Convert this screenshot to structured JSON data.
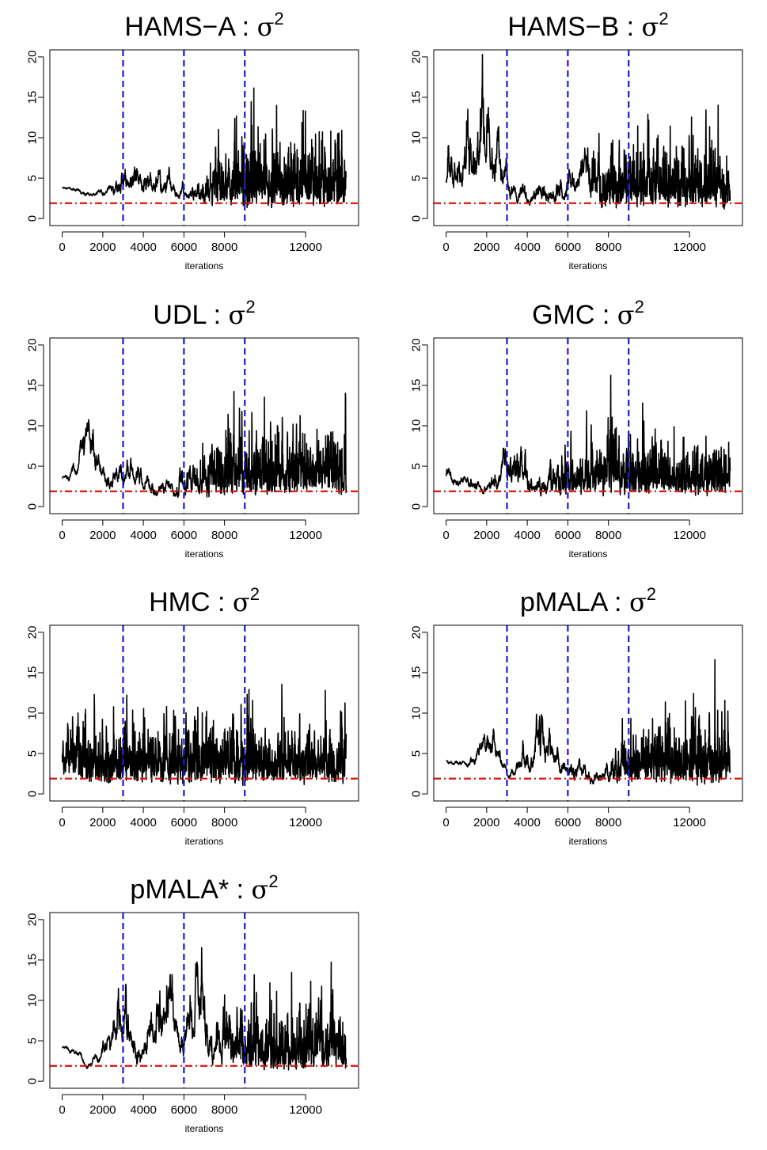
{
  "figure": {
    "background": "#ffffff",
    "trace_color": "#000000",
    "vline_color": "#1a1adc",
    "hline_color": "#e01010"
  },
  "chart_data": [
    {
      "type": "line",
      "title": "HAMS−A : ",
      "title_symbol": "σ",
      "title_sup": "2",
      "xlabel": "iterations",
      "ylabel": "",
      "xlim": [
        0,
        14000
      ],
      "ylim": [
        0,
        20
      ],
      "xticks": [
        0,
        2000,
        4000,
        6000,
        8000,
        12000
      ],
      "xtick_labels": [
        "0",
        "2000",
        "4000",
        "6000",
        "8000",
        "12000"
      ],
      "yticks": [
        0,
        5,
        10,
        15,
        20
      ],
      "ytick_labels": [
        "0",
        "5",
        "10",
        "15",
        "20"
      ],
      "vlines": [
        3000,
        6000,
        9000
      ],
      "hline": 1.9,
      "seed": 11,
      "profile": [
        [
          0,
          3.8,
          0.04,
          0.04
        ],
        [
          2200,
          3.2,
          0.1,
          0.05
        ],
        [
          3000,
          4.5,
          0.22,
          0.08
        ],
        [
          5200,
          4.2,
          0.22,
          0.08
        ],
        [
          6100,
          2.5,
          0.15,
          0.06
        ],
        [
          7200,
          4.0,
          0.35,
          0.4
        ],
        [
          9000,
          4.2,
          0.45,
          0.75
        ],
        [
          14000,
          4.2,
          0.45,
          0.75
        ]
      ]
    },
    {
      "type": "line",
      "title": "HAMS−B : ",
      "title_symbol": "σ",
      "title_sup": "2",
      "xlabel": "iterations",
      "ylabel": "",
      "xlim": [
        0,
        14000
      ],
      "ylim": [
        0,
        20
      ],
      "xticks": [
        0,
        2000,
        4000,
        6000,
        8000,
        12000
      ],
      "xtick_labels": [
        "0",
        "2000",
        "4000",
        "6000",
        "8000",
        "12000"
      ],
      "yticks": [
        0,
        5,
        10,
        15,
        20
      ],
      "ytick_labels": [
        "0",
        "5",
        "10",
        "15",
        "20"
      ],
      "vlines": [
        3000,
        6000,
        9000
      ],
      "hline": 1.9,
      "seed": 23,
      "profile": [
        [
          0,
          5.5,
          0.3,
          0.08
        ],
        [
          1800,
          9.0,
          0.3,
          0.12
        ],
        [
          3000,
          4.0,
          0.22,
          0.08
        ],
        [
          5400,
          3.0,
          0.25,
          0.08
        ],
        [
          6800,
          6.0,
          0.25,
          0.1
        ],
        [
          7800,
          3.5,
          0.4,
          0.5
        ],
        [
          9000,
          4.0,
          0.45,
          0.75
        ],
        [
          14000,
          4.0,
          0.45,
          0.75
        ]
      ]
    },
    {
      "type": "line",
      "title": "UDL : ",
      "title_symbol": "σ",
      "title_sup": "2",
      "xlabel": "iterations",
      "ylabel": "",
      "xlim": [
        0,
        14000
      ],
      "ylim": [
        0,
        20
      ],
      "xticks": [
        0,
        2000,
        4000,
        6000,
        8000,
        12000
      ],
      "xtick_labels": [
        "0",
        "2000",
        "4000",
        "6000",
        "8000",
        "12000"
      ],
      "yticks": [
        0,
        5,
        10,
        15,
        20
      ],
      "ytick_labels": [
        "0",
        "5",
        "10",
        "15",
        "20"
      ],
      "vlines": [
        3000,
        6000,
        9000
      ],
      "hline": 1.9,
      "seed": 37,
      "profile": [
        [
          0,
          3.5,
          0.06,
          0.04
        ],
        [
          1100,
          7.0,
          0.22,
          0.06
        ],
        [
          2200,
          3.0,
          0.25,
          0.06
        ],
        [
          3300,
          4.0,
          0.25,
          0.08
        ],
        [
          5200,
          2.2,
          0.25,
          0.08
        ],
        [
          6500,
          3.0,
          0.35,
          0.25
        ],
        [
          7800,
          4.0,
          0.45,
          0.6
        ],
        [
          9000,
          4.3,
          0.45,
          0.75
        ],
        [
          14000,
          4.3,
          0.45,
          0.75
        ]
      ]
    },
    {
      "type": "line",
      "title": "GMC : ",
      "title_symbol": "σ",
      "title_sup": "2",
      "xlabel": "iterations",
      "ylabel": "",
      "xlim": [
        0,
        14000
      ],
      "ylim": [
        0,
        20
      ],
      "xticks": [
        0,
        2000,
        4000,
        6000,
        8000,
        12000
      ],
      "xtick_labels": [
        "0",
        "2000",
        "4000",
        "6000",
        "8000",
        "12000"
      ],
      "yticks": [
        0,
        5,
        10,
        15,
        20
      ],
      "ytick_labels": [
        "0",
        "5",
        "10",
        "15",
        "20"
      ],
      "vlines": [
        3000,
        6000,
        9000
      ],
      "hline": 1.9,
      "seed": 53,
      "profile": [
        [
          0,
          4.0,
          0.12,
          0.06
        ],
        [
          2000,
          2.0,
          0.2,
          0.08
        ],
        [
          3400,
          5.5,
          0.28,
          0.1
        ],
        [
          4200,
          2.5,
          0.28,
          0.15
        ],
        [
          6000,
          3.5,
          0.38,
          0.45
        ],
        [
          9000,
          3.8,
          0.42,
          0.7
        ],
        [
          14000,
          3.8,
          0.42,
          0.7
        ]
      ]
    },
    {
      "type": "line",
      "title": "HMC : ",
      "title_symbol": "σ",
      "title_sup": "2",
      "xlabel": "iterations",
      "ylabel": "",
      "xlim": [
        0,
        14000
      ],
      "ylim": [
        0,
        20
      ],
      "xticks": [
        0,
        2000,
        4000,
        6000,
        8000,
        12000
      ],
      "xtick_labels": [
        "0",
        "2000",
        "4000",
        "6000",
        "8000",
        "12000"
      ],
      "yticks": [
        0,
        5,
        10,
        15,
        20
      ],
      "ytick_labels": [
        "0",
        "5",
        "10",
        "15",
        "20"
      ],
      "vlines": [
        3000,
        6000,
        9000
      ],
      "hline": 1.9,
      "seed": 71,
      "profile": [
        [
          0,
          4.5,
          0.3,
          0.3
        ],
        [
          1200,
          4.0,
          0.45,
          0.75
        ],
        [
          14000,
          4.0,
          0.45,
          0.75
        ]
      ]
    },
    {
      "type": "line",
      "title": "pMALA : ",
      "title_symbol": "σ",
      "title_sup": "2",
      "xlabel": "iterations",
      "ylabel": "",
      "xlim": [
        0,
        14000
      ],
      "ylim": [
        0,
        20
      ],
      "xticks": [
        0,
        2000,
        4000,
        6000,
        8000,
        12000
      ],
      "xtick_labels": [
        "0",
        "2000",
        "4000",
        "6000",
        "8000",
        "12000"
      ],
      "yticks": [
        0,
        5,
        10,
        15,
        20
      ],
      "ytick_labels": [
        "0",
        "5",
        "10",
        "15",
        "20"
      ],
      "vlines": [
        3000,
        6000,
        9000
      ],
      "hline": 1.9,
      "seed": 89,
      "profile": [
        [
          0,
          4.0,
          0.05,
          0.04
        ],
        [
          1000,
          4.0,
          0.08,
          0.04
        ],
        [
          2000,
          8.0,
          0.22,
          0.07
        ],
        [
          3000,
          1.6,
          0.18,
          0.05
        ],
        [
          4500,
          7.0,
          0.3,
          0.08
        ],
        [
          5500,
          4.0,
          0.25,
          0.08
        ],
        [
          7000,
          2.0,
          0.25,
          0.08
        ],
        [
          8000,
          2.5,
          0.25,
          0.1
        ],
        [
          9000,
          3.8,
          0.45,
          0.75
        ],
        [
          14000,
          3.8,
          0.45,
          0.75
        ]
      ]
    },
    {
      "type": "line",
      "title": "pMALA* : ",
      "title_symbol": "σ",
      "title_sup": "2",
      "xlabel": "iterations",
      "ylabel": "",
      "xlim": [
        0,
        14000
      ],
      "ylim": [
        0,
        20
      ],
      "xticks": [
        0,
        2000,
        4000,
        6000,
        8000,
        12000
      ],
      "xtick_labels": [
        "0",
        "2000",
        "4000",
        "6000",
        "8000",
        "12000"
      ],
      "yticks": [
        0,
        5,
        10,
        15,
        20
      ],
      "ytick_labels": [
        "0",
        "5",
        "10",
        "15",
        "20"
      ],
      "vlines": [
        3000,
        6000,
        9000
      ],
      "hline": 1.9,
      "seed": 97,
      "profile": [
        [
          0,
          4.2,
          0.05,
          0.04
        ],
        [
          1200,
          2.0,
          0.12,
          0.05
        ],
        [
          3000,
          8.5,
          0.3,
          0.08
        ],
        [
          3800,
          3.0,
          0.25,
          0.08
        ],
        [
          5200,
          10.0,
          0.28,
          0.08
        ],
        [
          5800,
          3.0,
          0.25,
          0.08
        ],
        [
          6600,
          10.0,
          0.28,
          0.08
        ],
        [
          7200,
          3.0,
          0.3,
          0.1
        ],
        [
          8000,
          6.0,
          0.35,
          0.3
        ],
        [
          9000,
          4.3,
          0.45,
          0.7
        ],
        [
          14000,
          4.3,
          0.45,
          0.7
        ]
      ]
    }
  ]
}
